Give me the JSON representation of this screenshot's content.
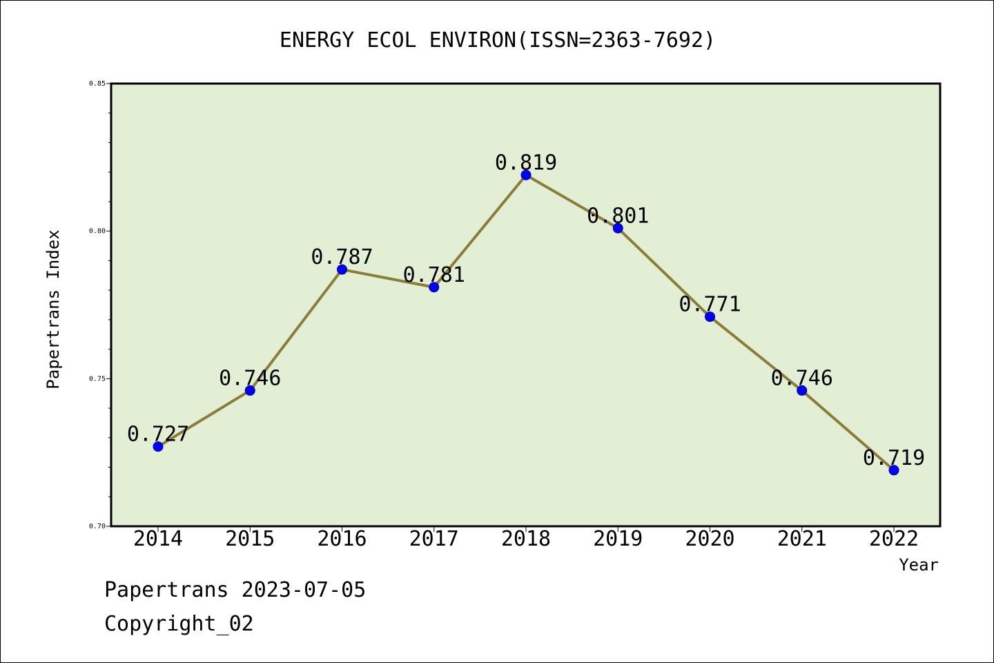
{
  "colors": {
    "plot_background": "#e2efd5",
    "line": "#8b7d37",
    "marker": "#0000ff"
  },
  "chart_data": {
    "type": "line",
    "title": "ENERGY ECOL ENVIRON(ISSN=2363-7692)",
    "xlabel": "Year",
    "ylabel": "Papertrans Index",
    "categories": [
      "2014",
      "2015",
      "2016",
      "2017",
      "2018",
      "2019",
      "2020",
      "2021",
      "2022"
    ],
    "values": [
      0.727,
      0.746,
      0.787,
      0.781,
      0.819,
      0.801,
      0.771,
      0.746,
      0.719
    ],
    "data_labels": [
      "0.727",
      "0.746",
      "0.787",
      "0.781",
      "0.819",
      "0.801",
      "0.771",
      "0.746",
      "0.719"
    ],
    "ylim": [
      0.7,
      0.85
    ],
    "y_ticks": [
      0.7,
      0.75,
      0.8,
      0.85
    ],
    "y_tick_labels": [
      "0.70",
      "0.75",
      "0.80",
      "0.85"
    ],
    "y_minor_step": 0.01,
    "grid": false,
    "legend": false
  },
  "footer": {
    "date_text": "Papertrans 2023-07-05",
    "copyright_text": "Copyright_02"
  }
}
